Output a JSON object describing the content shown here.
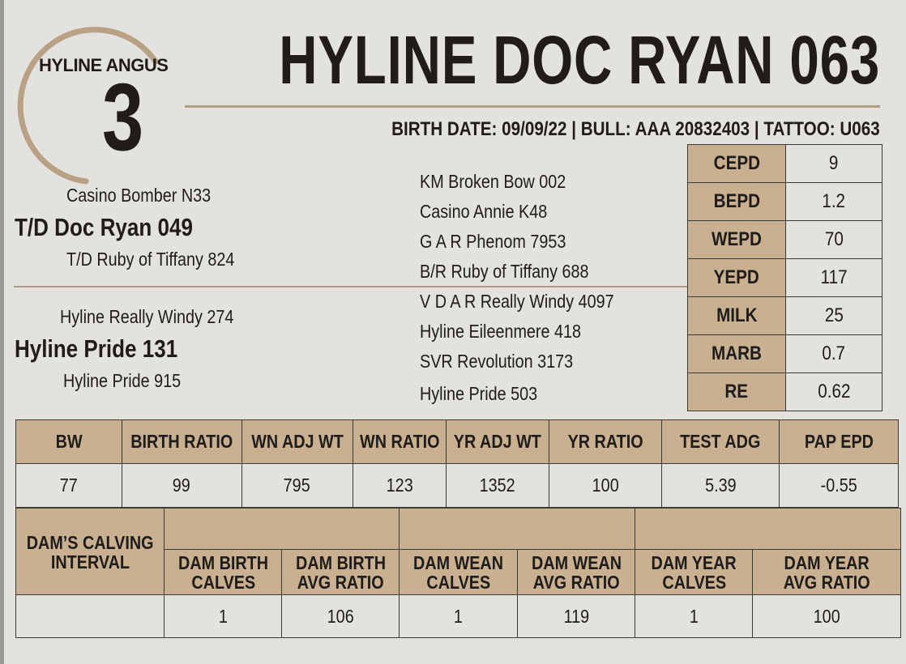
{
  "header": {
    "brand": "HYLINE ANGUS",
    "lot_number": "3",
    "bull_name": "HYLINE DOC RYAN 063",
    "birth_line": "BIRTH DATE: 09/09/22 | BULL:  AAA 20832403 | TATTOO: U063"
  },
  "pedigree": {
    "sire": "T/D Doc Ryan 049",
    "sire_sire": "Casino Bomber N33",
    "sire_dam": "T/D Ruby of Tiffany 824",
    "dam": "Hyline Pride 131",
    "dam_sire": "Hyline Really Windy 274",
    "dam_dam": "Hyline Pride 915",
    "third_gen": [
      "KM Broken Bow 002",
      "Casino Annie K48",
      "G A R Phenom 7953",
      "B/R Ruby of Tiffany 688",
      "V D A R Really Windy 4097",
      "Hyline Eileenmere 418",
      "SVR Revolution 3173",
      "Hyline Pride 503"
    ]
  },
  "epds": [
    {
      "label": "CEPD",
      "value": "9"
    },
    {
      "label": "BEPD",
      "value": "1.2"
    },
    {
      "label": "WEPD",
      "value": "70"
    },
    {
      "label": "YEPD",
      "value": "117"
    },
    {
      "label": "MILK",
      "value": "25"
    },
    {
      "label": "MARB",
      "value": "0.7"
    },
    {
      "label": "RE",
      "value": "0.62"
    }
  ],
  "performance": {
    "headers": [
      "BW",
      "BIRTH RATIO",
      "WN ADJ WT",
      "WN RATIO",
      "YR ADJ WT",
      "YR RATIO",
      "TEST ADG",
      "PAP EPD"
    ],
    "values": [
      "77",
      "99",
      "795",
      "123",
      "1352",
      "100",
      "5.39",
      "-0.55"
    ]
  },
  "dam_record": {
    "calving_label_line1": "DAM’S CALVING",
    "calving_label_line2": "INTERVAL",
    "headers": [
      [
        "DAM BIRTH",
        "CALVES"
      ],
      [
        "DAM BIRTH",
        "AVG RATIO"
      ],
      [
        "DAM WEAN",
        "CALVES"
      ],
      [
        "DAM WEAN",
        "AVG RATIO"
      ],
      [
        "DAM YEAR",
        "CALVES"
      ],
      [
        "DAM YEAR",
        "AVG RATIO"
      ]
    ],
    "calving_interval": "",
    "values": [
      "1",
      "106",
      "1",
      "119",
      "1",
      "100"
    ]
  },
  "colors": {
    "accent_tan": "#c9b091",
    "rule_tan": "#b19c82",
    "background": "#e3e2df",
    "text": "#1f1c1a"
  }
}
